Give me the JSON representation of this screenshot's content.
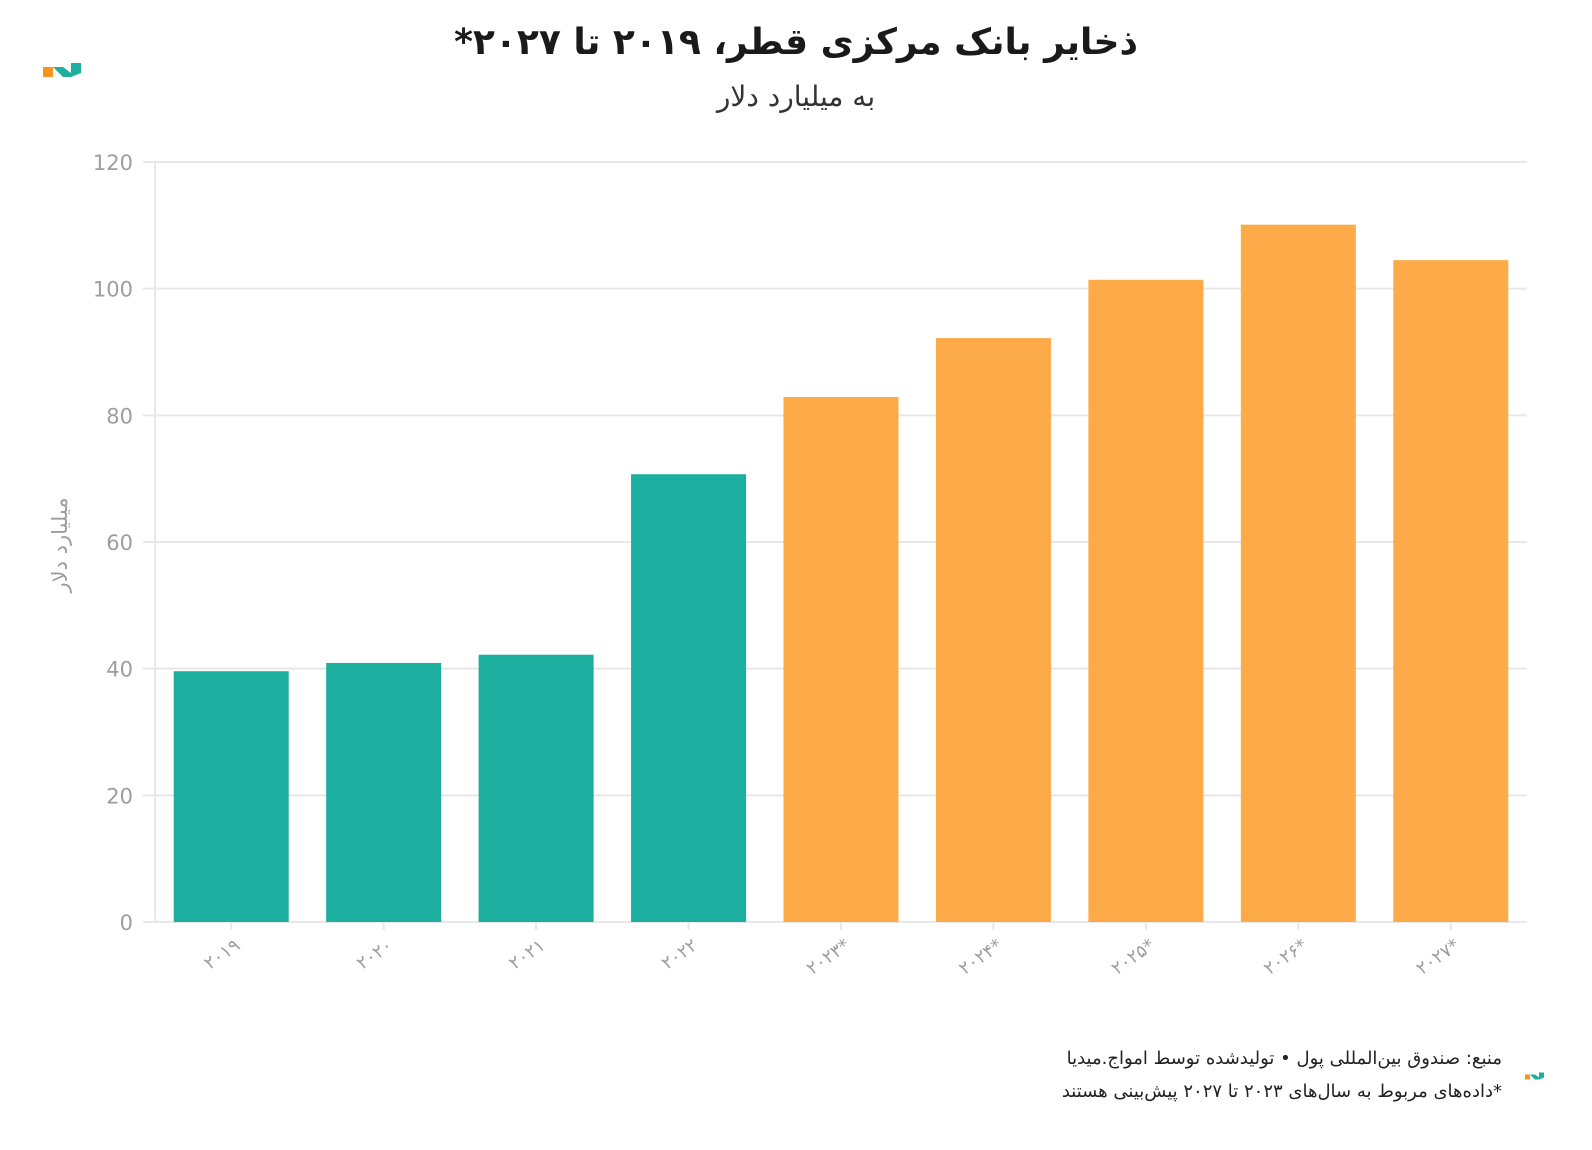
{
  "title": "ذخایر بانک مرکزی قطر، ۲۰۱۹ تا ۲۰۲۷*",
  "subtitle": "به میلیارد دلار",
  "colors": {
    "actual": "#1cae9f",
    "forecast": "#fdaa48",
    "grid": "#e8e8e8",
    "tick": "#9e9e9e",
    "logo_orange": "#f7941d",
    "logo_teal": "#1cae9f"
  },
  "chart_data": {
    "type": "bar",
    "ylabel": "میلیارد دلار",
    "ylim": [
      0,
      120
    ],
    "yticks": [
      0,
      20,
      40,
      60,
      80,
      100,
      120
    ],
    "categories": [
      "۲۰۱۹",
      "۲۰۲۰",
      "۲۰۲۱",
      "۲۰۲۲",
      "۲۰۲۳*",
      "۲۰۲۴*",
      "۲۰۲۵*",
      "۲۰۲۶*",
      "۲۰۲۷*"
    ],
    "values": [
      39.6,
      40.9,
      42.2,
      70.7,
      82.9,
      92.2,
      101.4,
      110.1,
      104.5
    ],
    "forecast": [
      false,
      false,
      false,
      false,
      true,
      true,
      true,
      true,
      true
    ],
    "grid": true
  },
  "footer": {
    "source": "منبع: صندوق بین‌المللی پول • تولیدشده توسط امواج.میدیا",
    "note": "*داده‌های مربوط به سال‌های ۲۰۲۳ تا ۲۰۲۷ پیش‌بینی هستند"
  }
}
